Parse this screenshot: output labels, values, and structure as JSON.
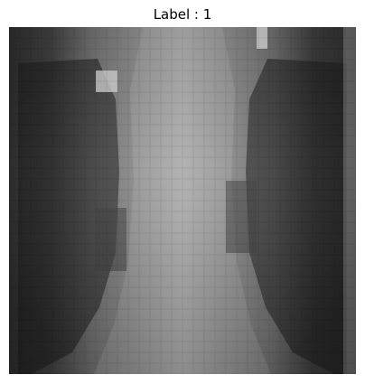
{
  "figure": {
    "title": "Label : 1"
  },
  "image": {
    "semantic": "grayscale-pixelated-chest-xray",
    "palette": {
      "dark": "#161616",
      "mid": "#6f6f6f",
      "light": "#b0b0b0",
      "highlight": "#d8d8d8"
    }
  }
}
